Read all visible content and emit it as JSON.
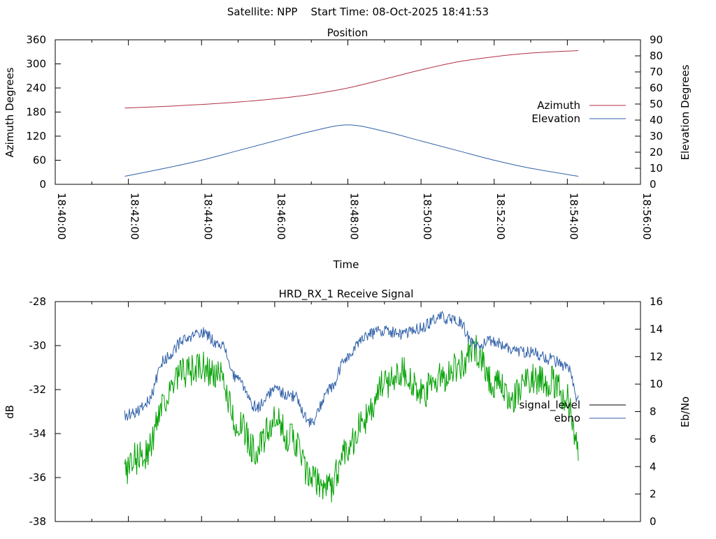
{
  "header": {
    "text": "Satellite: NPP    Start Time: 08-Oct-2025 18:41:53"
  },
  "colors": {
    "azimuth": "#b03040",
    "elevation": "#3060a8",
    "signal_level": "#000000",
    "ebno_line": "#3060a8",
    "ebno_trace_green": "#00a000"
  },
  "chart_data": [
    {
      "type": "line",
      "title": "Position",
      "xlabel": "Time",
      "ylabel": "Azimuth Degrees",
      "y2label": "Elevation Degrees",
      "xlim": [
        "18:40:00",
        "18:56:00"
      ],
      "ylim": [
        0,
        360
      ],
      "y2lim": [
        0,
        90
      ],
      "x_ticks": [
        "18:40:00",
        "18:42:00",
        "18:44:00",
        "18:46:00",
        "18:48:00",
        "18:50:00",
        "18:52:00",
        "18:54:00",
        "18:56:00"
      ],
      "y_ticks": [
        0,
        60,
        120,
        180,
        240,
        300,
        360
      ],
      "y2_ticks": [
        0,
        10,
        20,
        30,
        40,
        50,
        60,
        70,
        80,
        90
      ],
      "legend": [
        "Azimuth",
        "Elevation"
      ],
      "legend_position": "right",
      "series": [
        {
          "name": "Azimuth",
          "axis": "y",
          "time_min": [
            1.9,
            3,
            4,
            5,
            6,
            7,
            8,
            9,
            10,
            11,
            12,
            13,
            14.3
          ],
          "values": [
            190,
            194,
            199,
            205,
            213,
            224,
            240,
            262,
            285,
            305,
            318,
            327,
            333
          ]
        },
        {
          "name": "Elevation",
          "axis": "y2",
          "time_min": [
            1.9,
            3,
            4,
            5,
            6,
            7,
            8,
            9,
            10,
            11,
            12,
            13,
            14.3
          ],
          "values": [
            5,
            10,
            15,
            21,
            27,
            33,
            37,
            33,
            27,
            21,
            15,
            10,
            5
          ]
        }
      ]
    },
    {
      "type": "line",
      "title": "HRD_RX_1 Receive Signal",
      "ylabel": "dB",
      "y2label": "Eb/No",
      "xlim": [
        "18:40:00",
        "18:56:00"
      ],
      "ylim": [
        -38,
        -28
      ],
      "y2lim": [
        0,
        16
      ],
      "y_ticks": [
        -38,
        -36,
        -34,
        -32,
        -30,
        -28
      ],
      "y2_ticks": [
        0,
        2,
        4,
        6,
        8,
        10,
        12,
        14,
        16
      ],
      "legend": [
        "signal_level",
        "ebno"
      ],
      "legend_position": "right",
      "series": [
        {
          "name": "signal_level",
          "axis": "y",
          "time_min": [
            1.9,
            2.2,
            2.5,
            3.0,
            3.5,
            4.0,
            4.5,
            5.0,
            5.5,
            6.0,
            6.5,
            7.0,
            7.5,
            8.0,
            8.5,
            9.0,
            9.5,
            10.0,
            10.5,
            11.0,
            11.5,
            12.0,
            12.5,
            13.0,
            13.5,
            14.0,
            14.3
          ],
          "values": [
            -33.2,
            -33.0,
            -32.6,
            -30.6,
            -29.8,
            -29.4,
            -29.9,
            -31.6,
            -32.8,
            -32.0,
            -32.3,
            -33.5,
            -32.0,
            -30.5,
            -29.5,
            -29.3,
            -29.5,
            -29.2,
            -28.7,
            -28.9,
            -30.0,
            -29.8,
            -30.2,
            -30.3,
            -30.6,
            -31.0,
            -32.5
          ]
        },
        {
          "name": "ebno",
          "axis": "y2",
          "time_min": [
            1.9,
            2.2,
            2.5,
            3.0,
            3.5,
            4.0,
            4.5,
            5.0,
            5.5,
            6.0,
            6.5,
            7.0,
            7.5,
            8.0,
            8.5,
            9.0,
            9.5,
            10.0,
            10.5,
            11.0,
            11.5,
            12.0,
            12.5,
            13.0,
            13.5,
            14.0,
            14.3
          ],
          "values": [
            3.8,
            4.6,
            5.0,
            9.0,
            10.8,
            11.2,
            10.5,
            7.0,
            5.2,
            7.2,
            6.0,
            3.0,
            2.5,
            5.5,
            7.5,
            10.0,
            11.0,
            9.2,
            10.4,
            11.3,
            12.5,
            10.0,
            9.0,
            10.5,
            10.2,
            9.0,
            5.5
          ]
        }
      ]
    }
  ]
}
